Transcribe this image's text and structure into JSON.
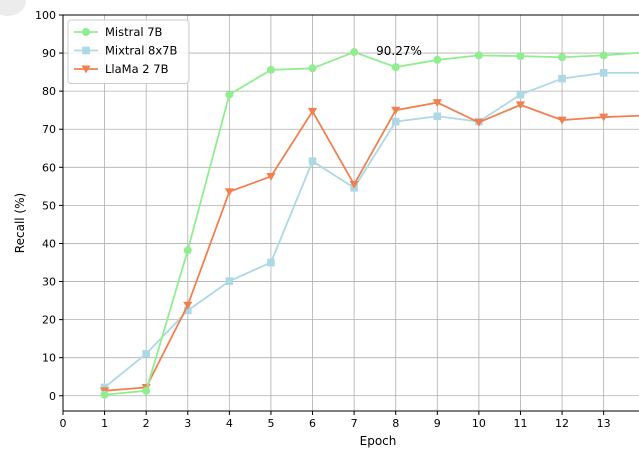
{
  "chart_data": {
    "type": "line",
    "title": "",
    "xlabel": "Epoch",
    "ylabel": "Recall (%)",
    "xlim": [
      0,
      13.85
    ],
    "ylim": [
      -4,
      100
    ],
    "xticks": [
      0,
      1,
      2,
      3,
      4,
      5,
      6,
      7,
      8,
      9,
      10,
      11,
      12,
      13
    ],
    "yticks": [
      0,
      10,
      20,
      30,
      40,
      50,
      60,
      70,
      80,
      90,
      100
    ],
    "grid": true,
    "legend_position": "upper-left",
    "annotation": {
      "text": "90.27%",
      "x": 7,
      "y": 90.27
    },
    "series": [
      {
        "name": "Mistral 7B",
        "color": "#90ee90",
        "marker": "circle",
        "x": [
          1,
          2,
          3,
          4,
          5,
          6,
          7,
          8,
          9,
          10,
          11,
          12,
          13,
          14
        ],
        "values": [
          0.3,
          1.3,
          38.2,
          79.1,
          85.6,
          86.0,
          90.27,
          86.3,
          88.2,
          89.4,
          89.2,
          88.9,
          89.4,
          90.2
        ]
      },
      {
        "name": "Mixtral 8x7B",
        "color": "#add8e6",
        "marker": "square",
        "x": [
          1,
          2,
          3,
          4,
          5,
          6,
          7,
          8,
          9,
          10,
          11,
          12,
          13,
          14
        ],
        "values": [
          2.2,
          11.0,
          22.4,
          30.1,
          35.0,
          61.6,
          54.6,
          72.0,
          73.4,
          72.0,
          79.1,
          83.3,
          84.8,
          84.8
        ]
      },
      {
        "name": "LlaMa 2 7B",
        "color": "#f08050",
        "marker": "triangle-down",
        "x": [
          1,
          2,
          3,
          4,
          5,
          6,
          7,
          8,
          9,
          10,
          11,
          12,
          13,
          14
        ],
        "values": [
          1.3,
          2.2,
          23.8,
          53.6,
          57.6,
          74.7,
          55.5,
          75.0,
          77.0,
          71.8,
          76.4,
          72.4,
          73.2,
          73.6
        ]
      }
    ]
  }
}
